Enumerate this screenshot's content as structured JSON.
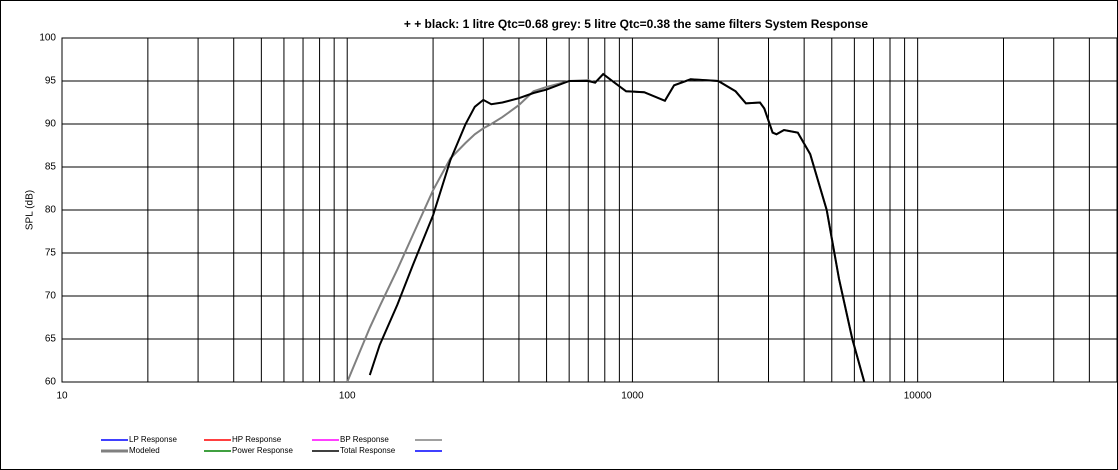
{
  "chart_data": {
    "type": "line",
    "title": "+   + black: 1 litre Qtc=0.68   grey: 5 litre Qtc=0.38 the same filters  System Response",
    "y_label": "SPL (dB)",
    "log_x": true,
    "grid": true,
    "x_minor_grid": true,
    "xlim": [
      10,
      50000
    ],
    "ylim": [
      60,
      100
    ],
    "xticks": [
      10,
      100,
      1000,
      10000
    ],
    "yticks": [
      60,
      65,
      70,
      75,
      80,
      85,
      90,
      95,
      100
    ],
    "x": [
      100,
      110,
      120,
      130,
      150,
      170,
      200,
      230,
      260,
      280,
      300,
      320,
      350,
      400,
      450,
      500,
      600,
      700,
      740,
      790,
      850,
      950,
      1100,
      1300,
      1400,
      1600,
      2000,
      2300,
      2500,
      2800,
      2900,
      3100,
      3200,
      3400,
      3800,
      4200,
      4800,
      5300,
      5900,
      6500
    ],
    "series": [
      {
        "name": "LP Response",
        "color": "#0000ff"
      },
      {
        "name": "HP Response",
        "color": "#ff0000"
      },
      {
        "name": "BP Response",
        "color": "#ff00ff"
      },
      {
        "color": "#808080"
      },
      {
        "name": "Modeled",
        "color": "#808080",
        "values": [
          60,
          63.3,
          66.3,
          68.8,
          73.1,
          77.1,
          82.3,
          86,
          87.8,
          88.8,
          89.5,
          90,
          90.8,
          92.2,
          93.8,
          94.3,
          95,
          95.1,
          94.8,
          95.8,
          95,
          93.8,
          93.7,
          92.7,
          94.5,
          95.2,
          95,
          93.8,
          92.4,
          92.5,
          91.8,
          89,
          88.8,
          89.3,
          89,
          86.5,
          80,
          72,
          65,
          60
        ]
      },
      {
        "name": "Power Response",
        "color": "#008000"
      },
      {
        "name": "Total Response",
        "color": "#000000",
        "values": [
          null,
          null,
          60.8,
          64.3,
          69,
          73.6,
          79.4,
          85.8,
          90,
          92,
          92.8,
          92.3,
          92.5,
          93,
          93.6,
          94,
          95,
          95,
          94.8,
          95.8,
          95,
          93.8,
          93.7,
          92.7,
          94.5,
          95.2,
          95,
          93.8,
          92.4,
          92.5,
          91.8,
          89,
          88.8,
          89.3,
          89,
          86.5,
          80,
          72,
          65,
          60
        ]
      },
      {
        "color": "#0000ff"
      }
    ]
  }
}
